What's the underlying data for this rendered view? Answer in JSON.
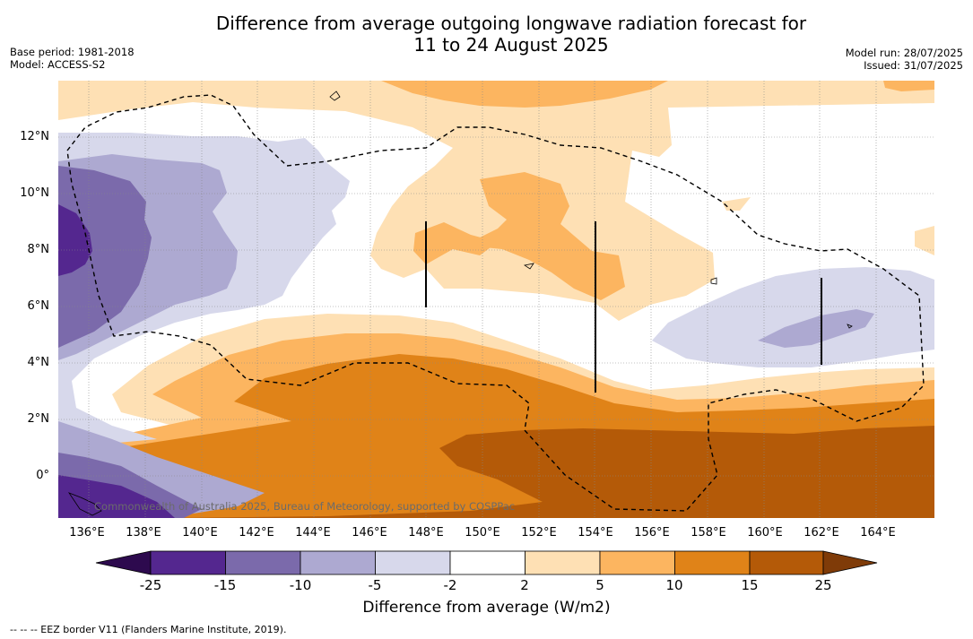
{
  "title": {
    "line1": "Difference from average outgoing longwave radiation forecast for",
    "line2": "11 to 24 August 2025"
  },
  "meta": {
    "base_period": "Base period: 1981-2018",
    "model": "Model: ACCESS-S2",
    "model_run": "Model run: 28/07/2025",
    "issued": "Issued: 31/07/2025"
  },
  "map": {
    "latitude_labels": [
      "12°N",
      "10°N",
      "8°N",
      "6°N",
      "4°N",
      "2°N",
      "0°"
    ],
    "longitude_labels": [
      "136°E",
      "138°E",
      "140°E",
      "142°E",
      "144°E",
      "146°E",
      "148°E",
      "150°E",
      "152°E",
      "154°E",
      "156°E",
      "158°E",
      "160°E",
      "162°E",
      "164°E"
    ],
    "credit": "Commonwealth of Australia 2025, Bureau of Meteorology, supported by COSPPac",
    "background_color": "#ffffff"
  },
  "colorbar": {
    "ticks": [
      "-25",
      "-15",
      "-10",
      "-5",
      "-2",
      "2",
      "5",
      "10",
      "15",
      "25"
    ],
    "colors": {
      "under": "#2d0a4e",
      "minus25_to_minus15": "#54278f",
      "minus15_to_minus10": "#7b6aab",
      "minus10_to_minus5": "#ada9d1",
      "minus5_to_minus2": "#d7d8eb",
      "minus2_to_2": "#ffffff",
      "2_to_5": "#fee0b4",
      "5_to_10": "#fcb560",
      "10_to_15": "#e08318",
      "15_to_25": "#b45a08",
      "over": "#7f3b08"
    },
    "label": "Difference from average (W/m2)"
  },
  "legend_note": "--  --  -- EEZ border V11 (Flanders Marine Institute, 2019)."
}
